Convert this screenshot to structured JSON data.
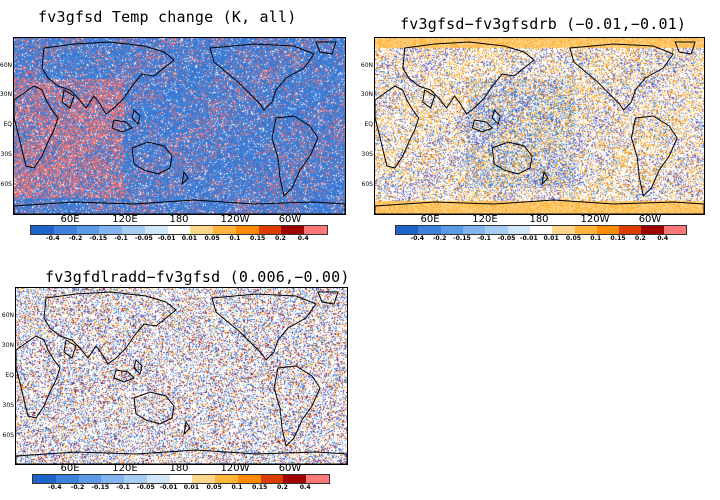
{
  "panels": [
    {
      "id": "p1",
      "title": "fv3gfsd Temp change (K, all)",
      "mode": "mostly-blue"
    },
    {
      "id": "p2",
      "title": "fv3gfsd−fv3gfsdrb (−0.01,−0.01)",
      "mode": "mostly-white-orange"
    },
    {
      "id": "p3",
      "title": "fv3gfdlradd−fv3gfsd (0.006,−0.00)",
      "mode": "mostly-white"
    }
  ],
  "lat_labels": [
    "60N",
    "30N",
    "EQ",
    "30S",
    "60S"
  ],
  "lon_labels": [
    "60E",
    "120E",
    "180",
    "120W",
    "60W"
  ],
  "colorbar": {
    "labels": [
      "-0.4",
      "-0.2",
      "-0.15",
      "-0.1",
      "-0.05",
      "-0.01",
      "0.01",
      "0.05",
      "0.1",
      "0.15",
      "0.2",
      "0.4"
    ],
    "colors": [
      "#1e64c8",
      "#3c82dc",
      "#5a9ae6",
      "#82b4f0",
      "#a8cdf5",
      "#d2e6fa",
      "#ffffff",
      "#ffd78c",
      "#ffb43c",
      "#ff8c00",
      "#dc3c00",
      "#a00000",
      "#ff7878"
    ]
  }
}
